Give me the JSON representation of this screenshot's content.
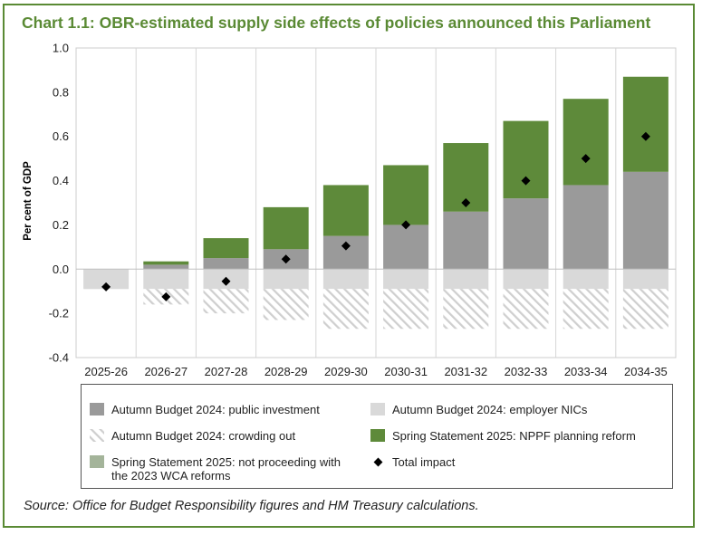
{
  "title": "Chart 1.1: OBR-estimated supply side effects of policies announced this Parliament",
  "source": "Source: Office for Budget Responsibility figures and HM Treasury calculations.",
  "chart_data": {
    "type": "bar",
    "stacked": true,
    "ylabel": "Per cent of GDP",
    "xlabel": "",
    "ylim": [
      -0.4,
      1.0
    ],
    "yticks": [
      "1.0",
      "0.8",
      "0.6",
      "0.4",
      "0.2",
      "0.0",
      "-0.2",
      "-0.4"
    ],
    "grid": "vertical",
    "categories": [
      "2025-26",
      "2026-27",
      "2027-28",
      "2028-29",
      "2029-30",
      "2030-31",
      "2031-32",
      "2032-33",
      "2033-34",
      "2034-35"
    ],
    "series": [
      {
        "name": "Autumn Budget 2024: public investment",
        "color": "#9a9a9a",
        "pattern": "solid",
        "values": [
          0.0,
          0.02,
          0.05,
          0.09,
          0.15,
          0.2,
          0.26,
          0.32,
          0.38,
          0.44
        ]
      },
      {
        "name": "Autumn Budget 2024: employer NICs",
        "color": "#d9d9d9",
        "pattern": "solid",
        "values": [
          -0.09,
          -0.09,
          -0.09,
          -0.09,
          -0.09,
          -0.09,
          -0.09,
          -0.09,
          -0.09,
          -0.09
        ]
      },
      {
        "name": "Autumn Budget 2024: crowding out",
        "color": "#d0d0d0",
        "pattern": "hatch",
        "values": [
          0.0,
          -0.07,
          -0.11,
          -0.14,
          -0.18,
          -0.18,
          -0.18,
          -0.18,
          -0.18,
          -0.18
        ]
      },
      {
        "name": "Spring Statement 2025: NPPF planning reform",
        "color": "#5e8a3a",
        "pattern": "solid",
        "values": [
          0.0,
          0.015,
          0.09,
          0.19,
          0.23,
          0.27,
          0.31,
          0.35,
          0.39,
          0.43
        ]
      },
      {
        "name": "Spring Statement 2025: not proceeding with the 2023 WCA reforms",
        "color": "#a4b49a",
        "pattern": "solid",
        "values": [
          0.0,
          0.0,
          0.0,
          0.0,
          0.0,
          0.0,
          0.0,
          0.0,
          0.0,
          0.0
        ]
      },
      {
        "name": "Total impact",
        "type": "marker",
        "marker": "diamond",
        "color": "#000000",
        "values": [
          -0.08,
          -0.125,
          -0.055,
          0.045,
          0.105,
          0.2,
          0.3,
          0.4,
          0.5,
          0.6
        ]
      }
    ]
  },
  "legend": {
    "items": [
      {
        "label": "Autumn Budget 2024: public investment"
      },
      {
        "label": "Autumn Budget 2024: employer NICs"
      },
      {
        "label": "Autumn Budget 2024: crowding out"
      },
      {
        "label": "Spring Statement 2025: NPPF planning reform"
      },
      {
        "label": "Spring Statement 2025: not proceeding with the 2023 WCA reforms"
      },
      {
        "label": "Total impact"
      }
    ]
  }
}
